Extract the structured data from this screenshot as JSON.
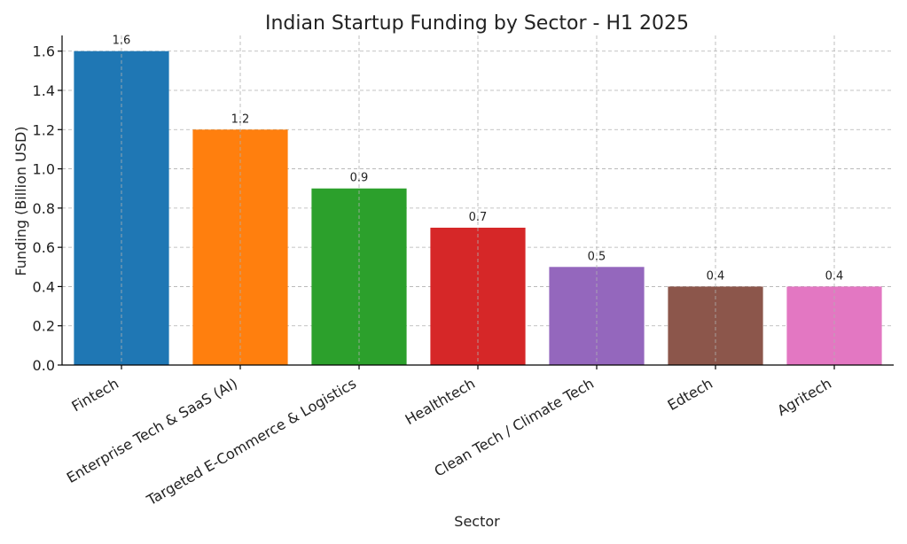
{
  "chart_data": {
    "type": "bar",
    "title": "Indian Startup Funding by Sector - H1 2025",
    "xlabel": "Sector",
    "ylabel": "Funding (Billion USD)",
    "categories": [
      "Fintech",
      "Enterprise Tech & SaaS (AI)",
      "Targeted E-Commerce & Logistics",
      "Healthtech",
      "Clean Tech / Climate Tech",
      "Edtech",
      "Agritech"
    ],
    "values": [
      1.6,
      1.2,
      0.9,
      0.7,
      0.5,
      0.4,
      0.4
    ],
    "data_labels": [
      "1.6",
      "1.2",
      "0.9",
      "0.7",
      "0.5",
      "0.4",
      "0.4"
    ],
    "colors": [
      "#1f77b4",
      "#ff7f0e",
      "#2ca02c",
      "#d62728",
      "#9467bd",
      "#8c564b",
      "#e377c2"
    ],
    "ylim": [
      0,
      1.68
    ],
    "yticks": [
      "0.0",
      "0.2",
      "0.4",
      "0.6",
      "0.8",
      "1.0",
      "1.2",
      "1.4",
      "1.6"
    ],
    "grid": true,
    "legend": "none"
  }
}
